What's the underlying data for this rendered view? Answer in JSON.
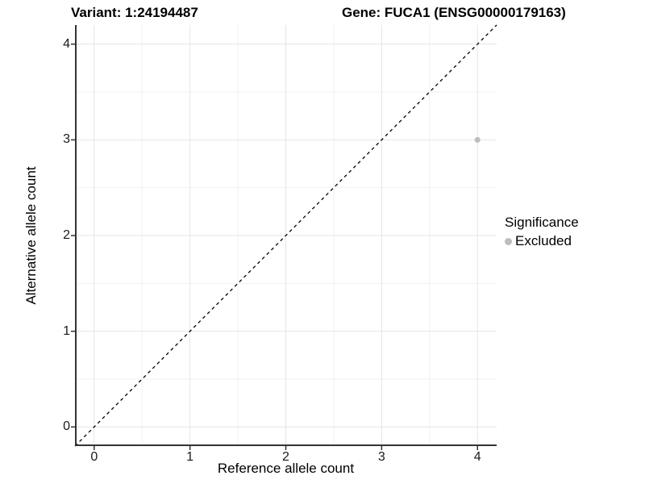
{
  "chart_data": {
    "type": "scatter",
    "titles": {
      "left": "Variant: 1:24194487",
      "right": "Gene: FUCA1 (ENSG00000179163)"
    },
    "xlabel": "Reference allele count",
    "ylabel": "Alternative allele count",
    "xlim": [
      -0.2,
      4.2
    ],
    "ylim": [
      -0.2,
      4.2
    ],
    "x_ticks": [
      0,
      1,
      2,
      3,
      4
    ],
    "y_ticks": [
      0,
      1,
      2,
      3,
      4
    ],
    "x_minor_ticks": [
      0.5,
      1.5,
      2.5,
      3.5
    ],
    "y_minor_ticks": [
      0.5,
      1.5,
      2.5,
      3.5
    ],
    "grid": true,
    "points": [
      {
        "x": 4,
        "y": 3,
        "significance": "Excluded"
      }
    ],
    "identity_line": {
      "slope": 1,
      "intercept": 0,
      "style": "dashed",
      "color": "#000000"
    },
    "legend": {
      "title": "Significance",
      "position": "right",
      "items": [
        {
          "label": "Excluded",
          "color": "#bdbdbd"
        }
      ]
    },
    "colors": {
      "point": "#bdbdbd",
      "grid_major": "#e4e4e4",
      "grid_minor": "#f1f1f1",
      "axis_line": "#333333",
      "tick_mark": "#333333"
    }
  }
}
